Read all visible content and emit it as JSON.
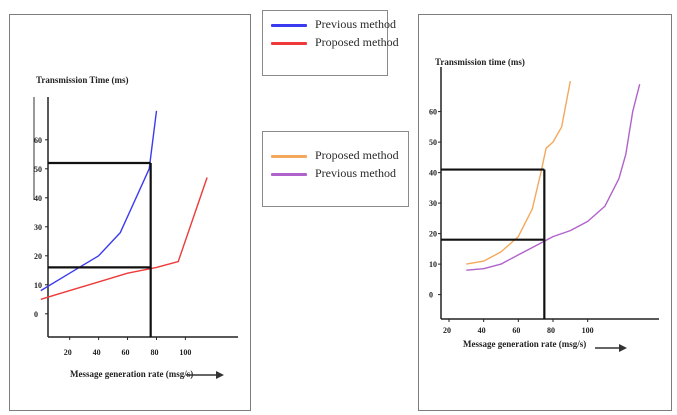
{
  "legend_top": [
    {
      "label": "Previous method",
      "color": "#3a3af0"
    },
    {
      "label": "Proposed method",
      "color": "#ee3a3a"
    }
  ],
  "legend_bottom": [
    {
      "label": "Proposed method",
      "color": "#f4a85c"
    },
    {
      "label": "Previous method",
      "color": "#b062cc"
    }
  ],
  "chart_data": [
    {
      "type": "line",
      "ylabel": "Transmission Time (ms)",
      "xlabel": "Message generation rate (msg/s)",
      "x_ticks": [
        20,
        40,
        60,
        80,
        100
      ],
      "y_ticks": [
        0,
        10,
        20,
        30,
        40,
        50,
        60
      ],
      "xlim": [
        5,
        135
      ],
      "ylim": [
        -8,
        72
      ],
      "series": [
        {
          "name": "Previous method",
          "color": "#3a3af0",
          "points": [
            [
              0,
              8
            ],
            [
              20,
              14
            ],
            [
              40,
              20
            ],
            [
              55,
              28
            ],
            [
              75,
              50
            ],
            [
              80,
              70
            ]
          ]
        },
        {
          "name": "Proposed method",
          "color": "#ee3a3a",
          "points": [
            [
              0,
              5
            ],
            [
              20,
              8
            ],
            [
              40,
              11
            ],
            [
              60,
              14
            ],
            [
              80,
              16
            ],
            [
              95,
              18
            ],
            [
              115,
              47
            ]
          ]
        }
      ],
      "guides": {
        "x": 76,
        "y_upper": 52,
        "y_lower": 16
      }
    },
    {
      "type": "line",
      "ylabel": "Transmission time (ms)",
      "xlabel": "Message generation rate (msg/s)",
      "x_ticks": [
        20,
        40,
        60,
        80,
        100
      ],
      "y_ticks": [
        0,
        10,
        20,
        30,
        40,
        50,
        60
      ],
      "xlim": [
        20,
        140
      ],
      "ylim": [
        -8,
        72
      ],
      "series": [
        {
          "name": "Proposed method",
          "color": "#f4a85c",
          "points": [
            [
              30,
              10
            ],
            [
              40,
              11
            ],
            [
              50,
              14
            ],
            [
              60,
              19
            ],
            [
              68,
              28
            ],
            [
              73,
              40
            ],
            [
              76,
              48
            ],
            [
              80,
              50
            ],
            [
              85,
              55
            ],
            [
              90,
              70
            ]
          ]
        },
        {
          "name": "Previous method",
          "color": "#b062cc",
          "points": [
            [
              30,
              8
            ],
            [
              40,
              8.5
            ],
            [
              50,
              10
            ],
            [
              60,
              13
            ],
            [
              70,
              16
            ],
            [
              80,
              19
            ],
            [
              90,
              21
            ],
            [
              100,
              24
            ],
            [
              110,
              29
            ],
            [
              118,
              38
            ],
            [
              122,
              46
            ],
            [
              126,
              60
            ],
            [
              130,
              69
            ]
          ]
        }
      ],
      "guides": {
        "x": 75,
        "y_upper": 41,
        "y_lower": 18
      }
    }
  ]
}
